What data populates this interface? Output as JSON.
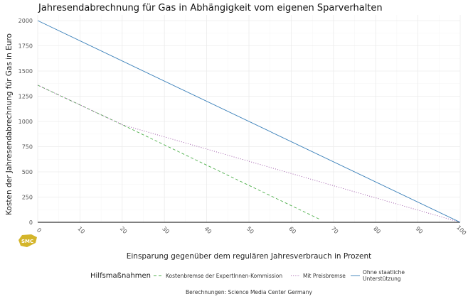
{
  "chart_data": {
    "type": "line",
    "title": "Jahresendabrechnung für Gas in Abhängigkeit vom eigenen Sparverhalten",
    "xlabel": "Einsparung gegenüber dem regulären Jahresverbrauch in Prozent",
    "ylabel": "Kosten der Jahresendabrechnung für Gas in Euro",
    "xlim": [
      0,
      100
    ],
    "ylim": [
      0,
      2000
    ],
    "x_ticks": [
      0,
      10,
      20,
      30,
      40,
      50,
      60,
      70,
      80,
      90,
      100
    ],
    "y_ticks": [
      0,
      250,
      500,
      750,
      1000,
      1250,
      1500,
      1750,
      2000
    ],
    "grid": true,
    "legend_position": "bottom",
    "legend_title": "Hilfsmaßnahmen",
    "series": [
      {
        "name": "Kostenbremse der ExpertInnen-Kommission",
        "color": "#4daf4a",
        "dash": "dashed",
        "x": [
          0,
          20,
          67
        ],
        "y": [
          1360,
          968,
          25
        ]
      },
      {
        "name": "Mit Preisbremse",
        "color": "#984ea3",
        "dash": "dotted",
        "x": [
          0,
          20,
          100
        ],
        "y": [
          1360,
          968,
          0
        ]
      },
      {
        "name": "Ohne staatliche Unterstützung",
        "color": "#377eb8",
        "dash": "solid",
        "x": [
          0,
          100
        ],
        "y": [
          2000,
          0
        ]
      }
    ],
    "caption": "Berechnungen: Science Media Center Germany"
  },
  "logo": {
    "text": "SMC",
    "color": "#d4b52a"
  }
}
